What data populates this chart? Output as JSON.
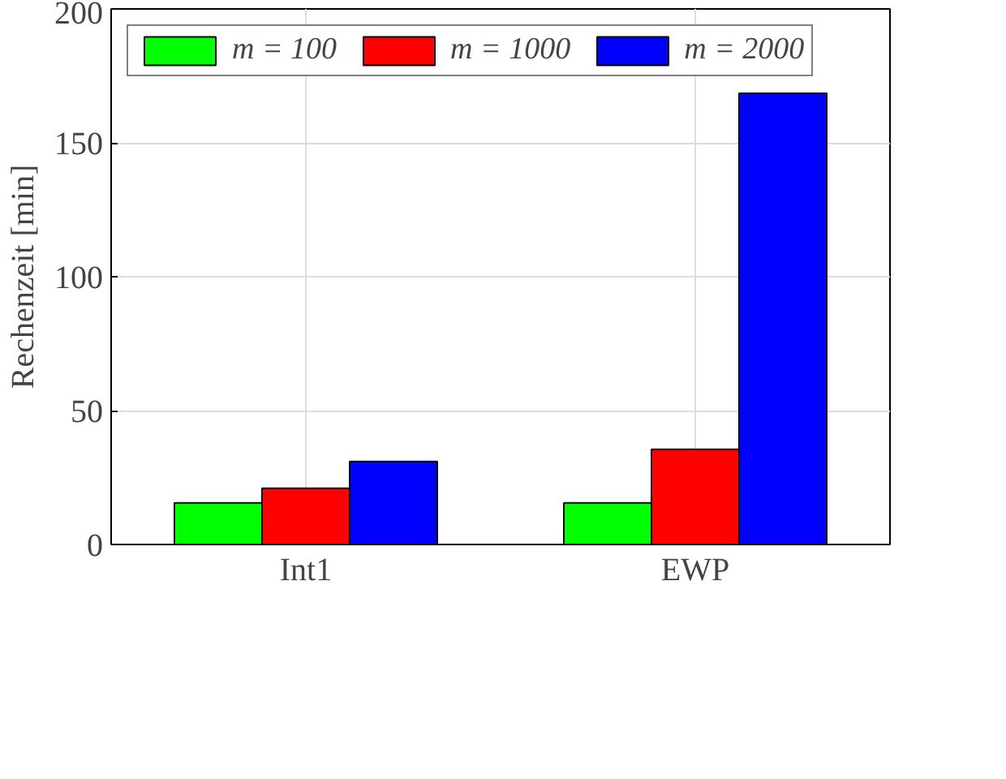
{
  "chart_data": {
    "type": "bar",
    "ylabel": "Rechenzeit [min]",
    "categories": [
      "Int1",
      "EWP"
    ],
    "series": [
      {
        "name": "m = 100",
        "color": "#00ff00",
        "values": [
          15.5,
          15.5
        ]
      },
      {
        "name": "m = 1000",
        "color": "#ff0000",
        "values": [
          21,
          35.5
        ]
      },
      {
        "name": "m = 2000",
        "color": "#0000ff",
        "values": [
          31,
          168.5
        ]
      }
    ],
    "ylim": [
      0,
      200
    ],
    "yticks": [
      0,
      50,
      100,
      150,
      200
    ],
    "grid": true,
    "legend": "top left"
  }
}
